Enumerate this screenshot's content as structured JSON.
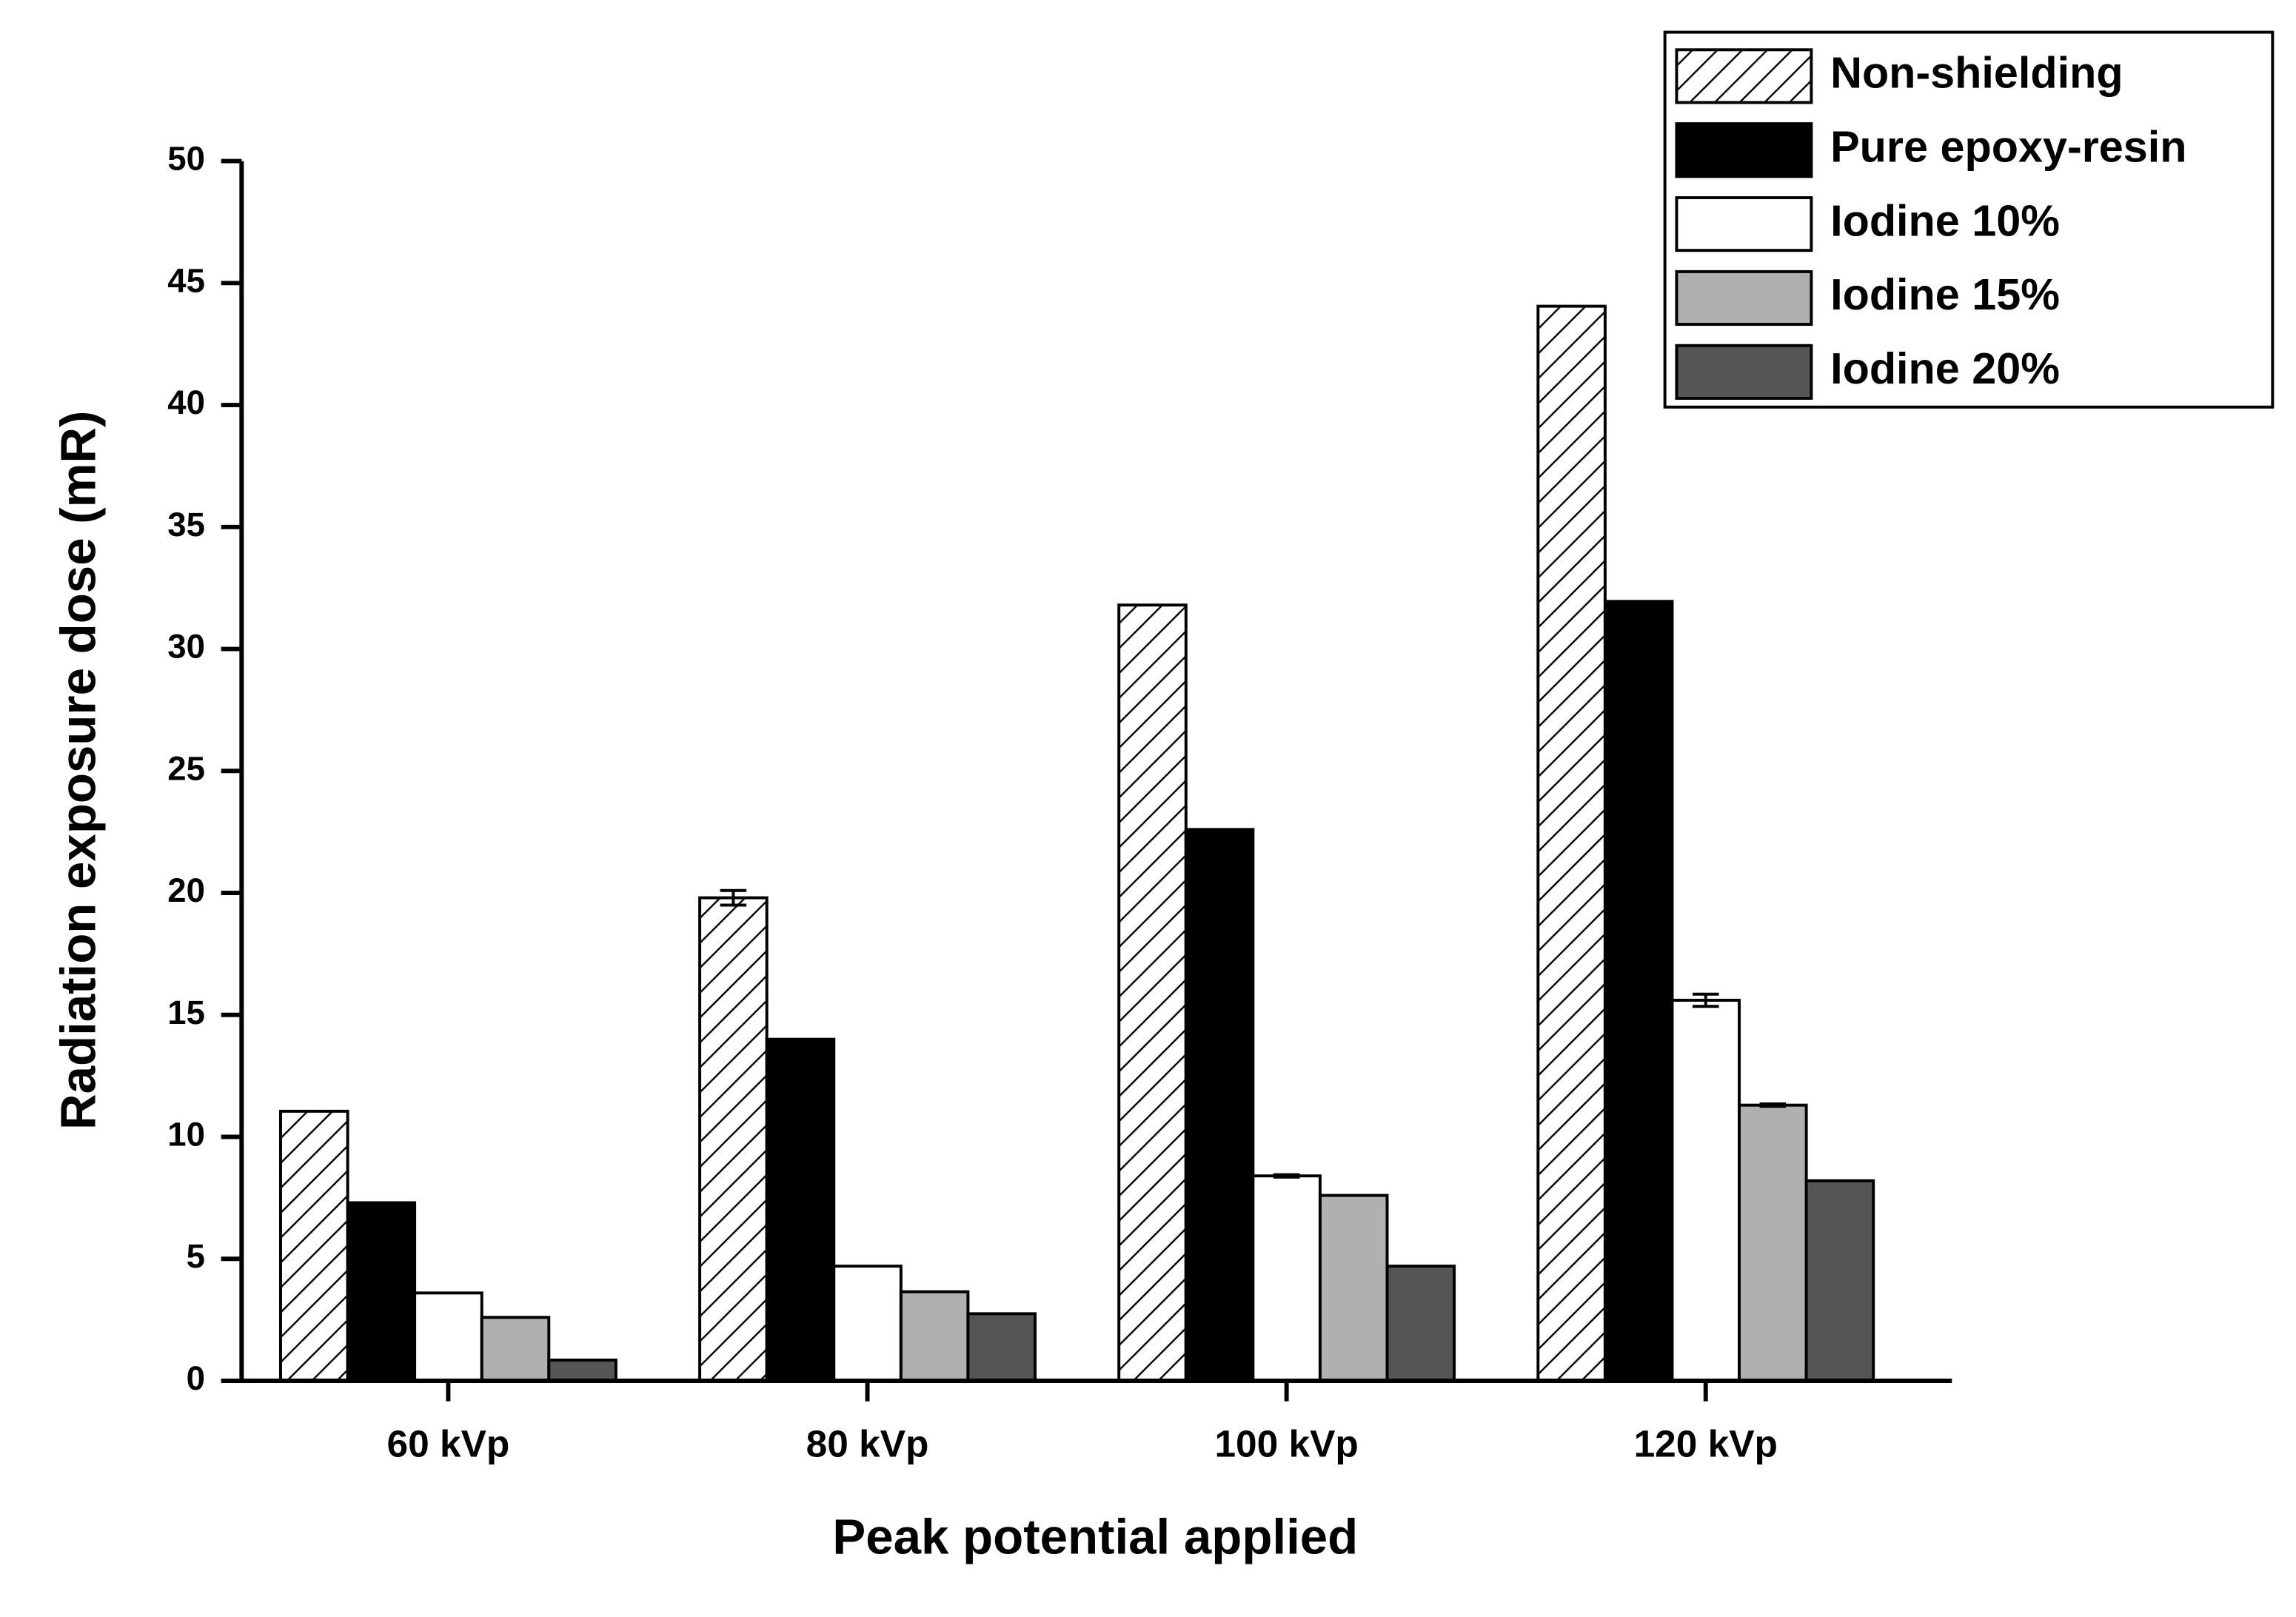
{
  "chart_data": {
    "type": "bar",
    "x_label": "Peak potential applied",
    "y_label": "Radiation exposure dose (mR)",
    "categories": [
      "60 kVp",
      "80 kVp",
      "100 kVp",
      "120 kVp"
    ],
    "series": [
      {
        "name": "Non-shielding",
        "color": "#ffffff",
        "hatch": true,
        "values": [
          11.05,
          19.8,
          31.8,
          44.05
        ],
        "errors": [
          0,
          0.3,
          0,
          0
        ]
      },
      {
        "name": "Pure epoxy-resin",
        "color": "#000000",
        "values": [
          7.3,
          14.0,
          22.6,
          31.95
        ],
        "errors": [
          0,
          0,
          0,
          0
        ]
      },
      {
        "name": "Iodine 10%",
        "color": "#ffffff",
        "values": [
          3.6,
          4.7,
          8.4,
          15.6
        ],
        "errors": [
          0,
          0,
          0.05,
          0.25
        ]
      },
      {
        "name": "Iodine 15%",
        "color": "#b0b0b0",
        "values": [
          2.6,
          3.65,
          7.6,
          11.3
        ],
        "errors": [
          0,
          0,
          0,
          0.05
        ]
      },
      {
        "name": "Iodine 20%",
        "color": "#555555",
        "values": [
          0.85,
          2.75,
          4.7,
          8.2
        ],
        "errors": [
          0,
          0,
          0,
          0
        ]
      }
    ],
    "ylim": [
      0,
      50
    ],
    "yticks": [
      0,
      5,
      10,
      15,
      20,
      25,
      30,
      35,
      40,
      45,
      50
    ],
    "legend": "top-right"
  }
}
